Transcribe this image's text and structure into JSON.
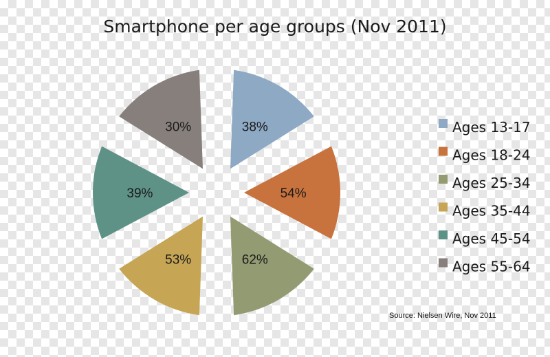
{
  "chart_data": {
    "type": "pie",
    "title": "Smartphone per age groups (Nov 2011)",
    "categories": [
      "Ages 13-17",
      "Ages 18-24",
      "Ages 25-34",
      "Ages 35-44",
      "Ages 45-54",
      "Ages 55-64"
    ],
    "values": [
      38,
      54,
      62,
      53,
      39,
      30
    ],
    "labels": [
      "38%",
      "54%",
      "62%",
      "53%",
      "39%",
      "30%"
    ],
    "colors": [
      "#8ea9c4",
      "#c8723e",
      "#939b72",
      "#c6a555",
      "#5e9287",
      "#877f7c"
    ],
    "legend_position": "right",
    "source": "Source: Nielsen Wire, Nov 2011"
  }
}
